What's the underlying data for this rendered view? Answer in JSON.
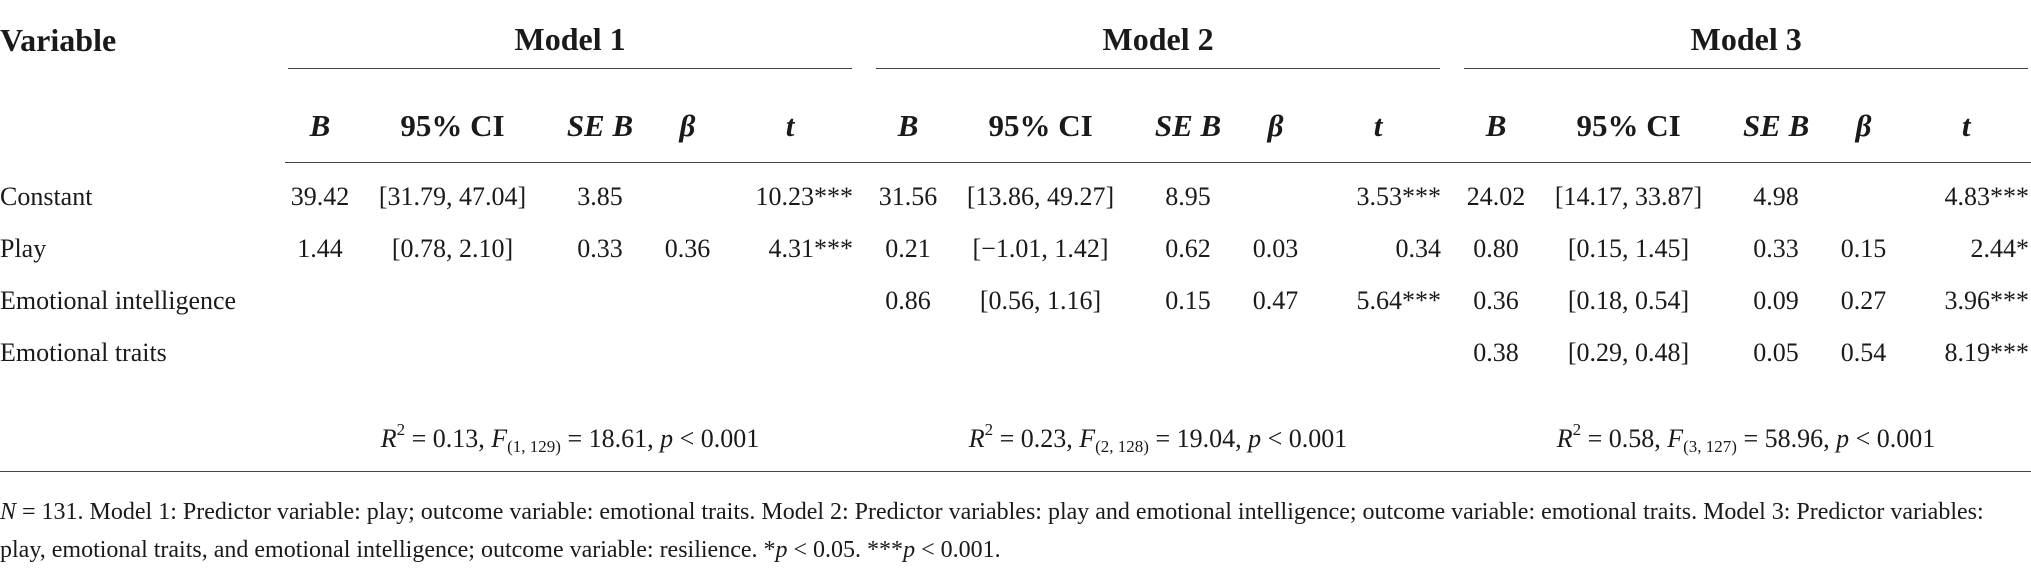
{
  "header": {
    "variable": "Variable",
    "models": [
      "Model 1",
      "Model 2",
      "Model 3"
    ],
    "columns": [
      "B",
      "95% CI",
      "SE B",
      "β",
      "t"
    ]
  },
  "rows": [
    {
      "label": "Constant",
      "m1": {
        "b": "39.42",
        "ci": "[31.79, 47.04]",
        "se": "3.85",
        "beta": "",
        "t": "10.23***"
      },
      "m2": {
        "b": "31.56",
        "ci": "[13.86, 49.27]",
        "se": "8.95",
        "beta": "",
        "t": "3.53***"
      },
      "m3": {
        "b": "24.02",
        "ci": "[14.17, 33.87]",
        "se": "4.98",
        "beta": "",
        "t": "4.83***"
      }
    },
    {
      "label": "Play",
      "m1": {
        "b": "1.44",
        "ci": "[0.78, 2.10]",
        "se": "0.33",
        "beta": "0.36",
        "t": "4.31***"
      },
      "m2": {
        "b": "0.21",
        "ci": "[−1.01, 1.42]",
        "se": "0.62",
        "beta": "0.03",
        "t": "0.34"
      },
      "m3": {
        "b": "0.80",
        "ci": "[0.15, 1.45]",
        "se": "0.33",
        "beta": "0.15",
        "t": "2.44*"
      }
    },
    {
      "label": "Emotional intelligence",
      "m1": {
        "b": "",
        "ci": "",
        "se": "",
        "beta": "",
        "t": ""
      },
      "m2": {
        "b": "0.86",
        "ci": "[0.56, 1.16]",
        "se": "0.15",
        "beta": "0.47",
        "t": "5.64***"
      },
      "m3": {
        "b": "0.36",
        "ci": "[0.18, 0.54]",
        "se": "0.09",
        "beta": "0.27",
        "t": "3.96***"
      }
    },
    {
      "label": "Emotional traits",
      "m1": {
        "b": "",
        "ci": "",
        "se": "",
        "beta": "",
        "t": ""
      },
      "m2": {
        "b": "",
        "ci": "",
        "se": "",
        "beta": "",
        "t": ""
      },
      "m3": {
        "b": "0.38",
        "ci": "[0.29, 0.48]",
        "se": "0.05",
        "beta": "0.54",
        "t": "8.19***"
      }
    }
  ],
  "stats": [
    {
      "r2_label": "R",
      "r2_sup": "2",
      "r2_value": " = 0.13, ",
      "f_label": "F",
      "f_sub": "(1, 129)",
      "f_value": " = 18.61, ",
      "p_label": "p",
      "p_value": " < 0.001"
    },
    {
      "r2_label": "R",
      "r2_sup": "2",
      "r2_value": " = 0.23, ",
      "f_label": "F",
      "f_sub": "(2, 128)",
      "f_value": " = 19.04, ",
      "p_label": "p",
      "p_value": " < 0.001"
    },
    {
      "r2_label": "R",
      "r2_sup": "2",
      "r2_value": " = 0.58, ",
      "f_label": "F",
      "f_sub": "(3, 127)",
      "f_value": " = 58.96, ",
      "p_label": "p",
      "p_value": " < 0.001"
    }
  ],
  "note": {
    "n_label": "N",
    "n_value": " = 131. Model 1: Predictor variable: play; outcome variable: emotional traits. Model 2: Predictor variables: play and emotional intelligence; outcome variable: emotional traits. Model 3: Predictor variables: play, emotional traits, and emotional intelligence; outcome variable: resilience. *",
    "p1_label": "p",
    "p1_value": " < 0.05. ***",
    "p2_label": "p",
    "p2_value": " < 0.001."
  }
}
